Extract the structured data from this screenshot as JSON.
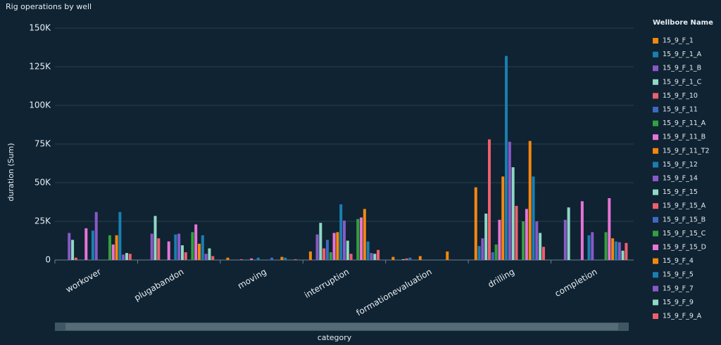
{
  "chart_data": {
    "type": "bar",
    "title": "Rig operations by well",
    "x_label": "category",
    "y_label": "duration (Sum)",
    "legend_title": "Wellbore Name",
    "legend_position": "right",
    "grid": true,
    "categories": [
      "workover",
      "plugabandon",
      "moving",
      "interruption",
      "formationevaluation",
      "drilling",
      "completion"
    ],
    "ylim": [
      0,
      150000
    ],
    "yticks": [
      {
        "value": 0,
        "label": "0"
      },
      {
        "value": 25000,
        "label": "25K"
      },
      {
        "value": 50000,
        "label": "50K"
      },
      {
        "value": 75000,
        "label": "75K"
      },
      {
        "value": 100000,
        "label": "100K"
      },
      {
        "value": 125000,
        "label": "125K"
      },
      {
        "value": 150000,
        "label": "150K"
      }
    ],
    "series": [
      {
        "name": "15_9_F_1",
        "color": "#f5870f",
        "values": [
          0,
          0,
          1500,
          5500,
          2000,
          47000,
          0
        ]
      },
      {
        "name": "15_9_F_1_A",
        "color": "#1a7fb0",
        "values": [
          0,
          0,
          0,
          0,
          0,
          9000,
          0
        ]
      },
      {
        "name": "15_9_F_1_B",
        "color": "#8a58c8",
        "values": [
          17500,
          17000,
          0,
          16500,
          0,
          14000,
          26000
        ]
      },
      {
        "name": "15_9_F_1_C",
        "color": "#8fd8c4",
        "values": [
          13000,
          28500,
          0,
          24000,
          500,
          30000,
          34000
        ]
      },
      {
        "name": "15_9_F_10",
        "color": "#ef5f6d",
        "values": [
          1500,
          14000,
          500,
          7500,
          1000,
          78000,
          0
        ]
      },
      {
        "name": "15_9_F_11",
        "color": "#3e69c2",
        "values": [
          0,
          0,
          0,
          13000,
          1500,
          5000,
          0
        ]
      },
      {
        "name": "15_9_F_11_A",
        "color": "#33a03e",
        "values": [
          0,
          0,
          0,
          5000,
          0,
          10000,
          0
        ]
      },
      {
        "name": "15_9_F_11_B",
        "color": "#e774d6",
        "values": [
          20500,
          12000,
          1000,
          17500,
          0,
          26000,
          38000
        ]
      },
      {
        "name": "15_9_F_11_T2",
        "color": "#f5870f",
        "values": [
          0,
          0,
          0,
          18000,
          2500,
          54000,
          0
        ]
      },
      {
        "name": "15_9_F_12",
        "color": "#1a7fb0",
        "values": [
          19000,
          16500,
          1500,
          36000,
          0,
          132000,
          16000
        ]
      },
      {
        "name": "15_9_F_14",
        "color": "#8a58c8",
        "values": [
          31000,
          17000,
          0,
          25500,
          0,
          76500,
          18000
        ]
      },
      {
        "name": "15_9_F_15",
        "color": "#8fd8c4",
        "values": [
          0,
          9500,
          0,
          12500,
          0,
          60000,
          0
        ]
      },
      {
        "name": "15_9_F_15_A",
        "color": "#ef5f6d",
        "values": [
          0,
          5000,
          0,
          4000,
          0,
          35000,
          0
        ]
      },
      {
        "name": "15_9_F_15_B",
        "color": "#3e69c2",
        "values": [
          0,
          0,
          1500,
          0,
          0,
          0,
          0
        ]
      },
      {
        "name": "15_9_F_15_C",
        "color": "#33a03e",
        "values": [
          16000,
          18000,
          0,
          26500,
          0,
          25000,
          18000
        ]
      },
      {
        "name": "15_9_F_15_D",
        "color": "#e774d6",
        "values": [
          10000,
          23000,
          0,
          27500,
          0,
          33000,
          40000
        ]
      },
      {
        "name": "15_9_F_4",
        "color": "#f5870f",
        "values": [
          16000,
          10500,
          2000,
          33000,
          5500,
          77000,
          14000
        ]
      },
      {
        "name": "15_9_F_5",
        "color": "#1a7fb0",
        "values": [
          31000,
          16000,
          1500,
          12000,
          0,
          54000,
          12000
        ]
      },
      {
        "name": "15_9_F_7",
        "color": "#8a58c8",
        "values": [
          3500,
          4000,
          0,
          4500,
          0,
          25000,
          11500
        ]
      },
      {
        "name": "15_9_F_9",
        "color": "#8fd8c4",
        "values": [
          4500,
          7500,
          0,
          4000,
          0,
          17500,
          6000
        ]
      },
      {
        "name": "15_9_F_9_A",
        "color": "#ef5f6d",
        "values": [
          4000,
          2500,
          500,
          6500,
          0,
          8500,
          11000
        ]
      }
    ]
  }
}
